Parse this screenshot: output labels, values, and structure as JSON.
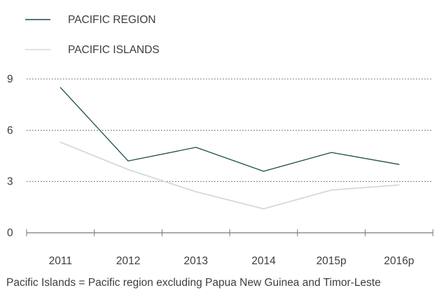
{
  "chart_data": {
    "type": "line",
    "categories": [
      "2011",
      "2012",
      "2013",
      "2014",
      "2015p",
      "2016p"
    ],
    "series": [
      {
        "name": "PACIFIC REGION",
        "color": "#1f4e4e",
        "values": [
          8.5,
          4.2,
          5.0,
          3.6,
          4.7,
          4.0
        ]
      },
      {
        "name": "PACIFIC ISLANDS",
        "color": "#d5d9d9",
        "values": [
          5.3,
          3.7,
          2.4,
          1.4,
          2.5,
          2.8
        ]
      }
    ],
    "y_ticks": [
      "0",
      "3",
      "6",
      "9"
    ],
    "ylim": [
      0,
      9
    ],
    "grid": "horizontal dotted at 3, 6, 9",
    "legend_position": "top-left",
    "note": "Pacific Islands = Pacific region excluding Papua New Guinea and Timor-Leste"
  }
}
